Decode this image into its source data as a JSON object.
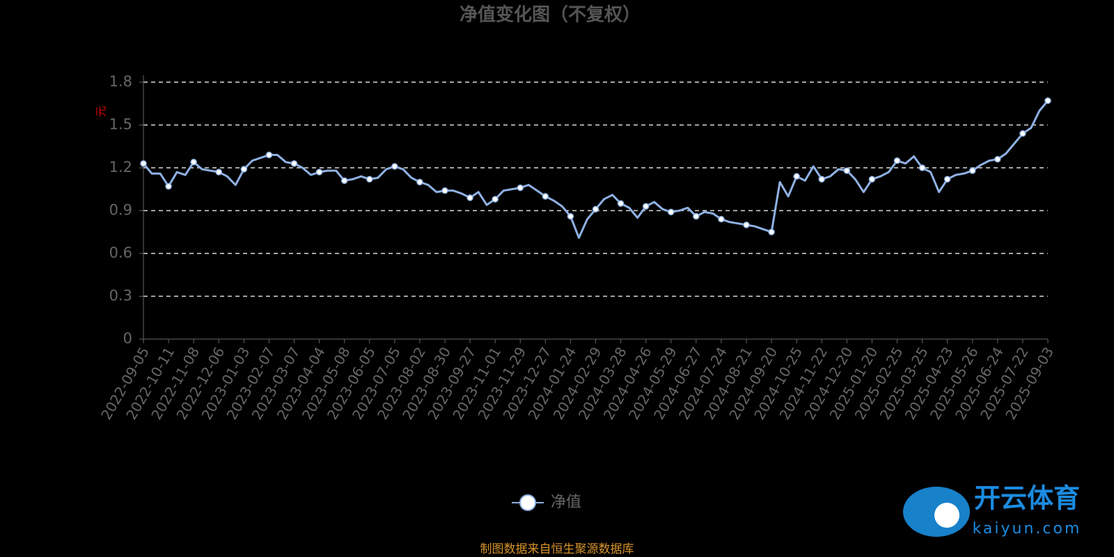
{
  "chart_data": {
    "type": "line",
    "title": "净值变化图（不复权）",
    "y_label": "元",
    "source": "制图数据来自恒生聚源数据库",
    "watermark": [
      "开云体育",
      "kaiyun.com"
    ],
    "categories": [
      "2022-09-05",
      null,
      null,
      "2022-10-11",
      null,
      null,
      "2022-11-08",
      null,
      null,
      "2022-12-06",
      null,
      null,
      "2023-01-03",
      null,
      null,
      "2023-02-07",
      null,
      null,
      "2023-03-07",
      null,
      null,
      "2023-04-04",
      null,
      null,
      "2023-05-08",
      null,
      null,
      "2023-06-05",
      null,
      null,
      "2023-07-05",
      null,
      null,
      "2023-08-02",
      null,
      null,
      "2023-08-30",
      null,
      null,
      "2023-09-27",
      null,
      null,
      "2023-11-01",
      null,
      null,
      "2023-11-29",
      null,
      null,
      "2023-12-27",
      null,
      null,
      "2024-01-24",
      null,
      null,
      "2024-02-29",
      null,
      null,
      "2024-03-28",
      null,
      null,
      "2024-04-26",
      null,
      null,
      "2024-05-29",
      null,
      null,
      "2024-06-27",
      null,
      null,
      "2024-07-24",
      null,
      null,
      "2024-08-21",
      null,
      null,
      "2024-09-20",
      null,
      null,
      "2024-10-25",
      null,
      null,
      "2024-11-22",
      null,
      null,
      "2024-12-20",
      null,
      null,
      "2025-01-20",
      null,
      null,
      "2025-02-25",
      null,
      null,
      "2025-03-25",
      null,
      null,
      "2025-04-23",
      null,
      null,
      "2025-05-26",
      null,
      null,
      "2025-06-24",
      null,
      null,
      "2025-07-22",
      null,
      null,
      "2025-09-03"
    ],
    "series": [
      {
        "name": "净值",
        "color": "#8fb1e3",
        "values": [
          1.23,
          1.16,
          1.16,
          1.07,
          1.17,
          1.15,
          1.24,
          1.19,
          1.18,
          1.17,
          1.14,
          1.08,
          1.19,
          1.25,
          1.27,
          1.29,
          1.29,
          1.24,
          1.23,
          1.2,
          1.15,
          1.17,
          1.18,
          1.18,
          1.11,
          1.12,
          1.14,
          1.12,
          1.13,
          1.19,
          1.21,
          1.19,
          1.13,
          1.1,
          1.08,
          1.03,
          1.04,
          1.04,
          1.02,
          0.99,
          1.03,
          0.94,
          0.98,
          1.04,
          1.05,
          1.06,
          1.08,
          1.04,
          1.0,
          0.97,
          0.93,
          0.86,
          0.71,
          0.84,
          0.91,
          0.98,
          1.01,
          0.95,
          0.92,
          0.85,
          0.93,
          0.96,
          0.91,
          0.89,
          0.9,
          0.92,
          0.86,
          0.89,
          0.88,
          0.84,
          0.82,
          0.81,
          0.8,
          0.79,
          0.77,
          0.75,
          1.1,
          1.0,
          1.14,
          1.11,
          1.21,
          1.12,
          1.14,
          1.19,
          1.18,
          1.12,
          1.03,
          1.12,
          1.14,
          1.17,
          1.25,
          1.23,
          1.28,
          1.2,
          1.17,
          1.03,
          1.12,
          1.15,
          1.16,
          1.18,
          1.22,
          1.25,
          1.26,
          1.3,
          1.37,
          1.44,
          1.48,
          1.6,
          1.67
        ]
      }
    ],
    "ylim": [
      0,
      1.8
    ],
    "yticks": [
      0,
      0.3,
      0.6,
      0.9,
      1.2,
      1.5,
      1.8
    ],
    "grid": true,
    "legend": "bottom"
  }
}
